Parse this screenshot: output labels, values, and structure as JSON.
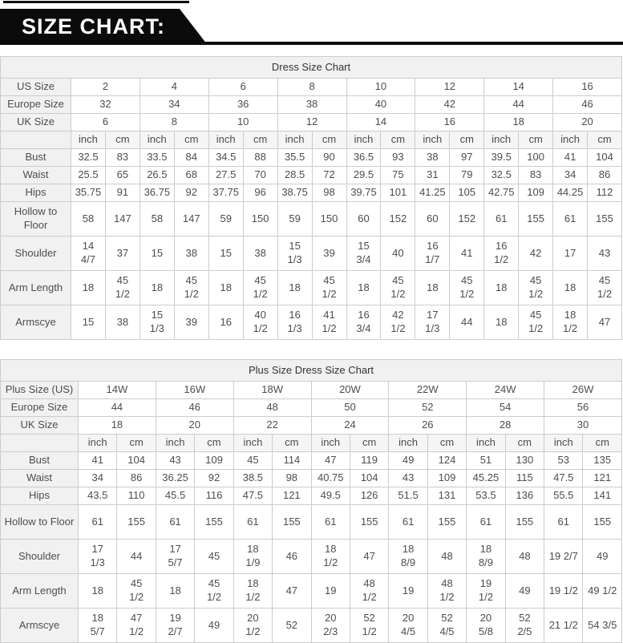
{
  "banner": {
    "title": "SIZE CHART:"
  },
  "colors": {
    "banner_bg": "#0b0b0b",
    "banner_text": "#ffffff",
    "header_bg": "#f1f1f1",
    "unit_bg": "#f5f5f5",
    "border": "#cccccc",
    "text": "#4d4d4d"
  },
  "tables": [
    {
      "title": "Dress Size Chart",
      "size_rows": [
        {
          "label": "US Size",
          "values": [
            "2",
            "4",
            "6",
            "8",
            "10",
            "12",
            "14",
            "16"
          ]
        },
        {
          "label": "Europe Size",
          "values": [
            "32",
            "34",
            "36",
            "38",
            "40",
            "42",
            "44",
            "46"
          ]
        },
        {
          "label": "UK Size",
          "values": [
            "6",
            "8",
            "10",
            "12",
            "14",
            "16",
            "18",
            "20"
          ]
        }
      ],
      "unit_headers": [
        "inch",
        "cm"
      ],
      "measure_rows": [
        {
          "label": "Bust",
          "tall": false,
          "cells": [
            [
              "32.5",
              "83"
            ],
            [
              "33.5",
              "84"
            ],
            [
              "34.5",
              "88"
            ],
            [
              "35.5",
              "90"
            ],
            [
              "36.5",
              "93"
            ],
            [
              "38",
              "97"
            ],
            [
              "39.5",
              "100"
            ],
            [
              "41",
              "104"
            ]
          ]
        },
        {
          "label": "Waist",
          "tall": false,
          "cells": [
            [
              "25.5",
              "65"
            ],
            [
              "26.5",
              "68"
            ],
            [
              "27.5",
              "70"
            ],
            [
              "28.5",
              "72"
            ],
            [
              "29.5",
              "75"
            ],
            [
              "31",
              "79"
            ],
            [
              "32.5",
              "83"
            ],
            [
              "34",
              "86"
            ]
          ]
        },
        {
          "label": "Hips",
          "tall": false,
          "cells": [
            [
              "35.75",
              "91"
            ],
            [
              "36.75",
              "92"
            ],
            [
              "37.75",
              "96"
            ],
            [
              "38.75",
              "98"
            ],
            [
              "39.75",
              "101"
            ],
            [
              "41.25",
              "105"
            ],
            [
              "42.75",
              "109"
            ],
            [
              "44.25",
              "112"
            ]
          ]
        },
        {
          "label": "Hollow to Floor",
          "tall": true,
          "cells": [
            [
              "58",
              "147"
            ],
            [
              "58",
              "147"
            ],
            [
              "59",
              "150"
            ],
            [
              "59",
              "150"
            ],
            [
              "60",
              "152"
            ],
            [
              "60",
              "152"
            ],
            [
              "61",
              "155"
            ],
            [
              "61",
              "155"
            ]
          ]
        },
        {
          "label": "Shoulder",
          "tall": true,
          "cells": [
            [
              "14\n4/7",
              "37"
            ],
            [
              "15",
              "38"
            ],
            [
              "15",
              "38"
            ],
            [
              "15\n1/3",
              "39"
            ],
            [
              "15\n3/4",
              "40"
            ],
            [
              "16\n1/7",
              "41"
            ],
            [
              "16\n1/2",
              "42"
            ],
            [
              "17",
              "43"
            ]
          ]
        },
        {
          "label": "Arm Length",
          "tall": true,
          "cells": [
            [
              "18",
              "45\n1/2"
            ],
            [
              "18",
              "45\n1/2"
            ],
            [
              "18",
              "45\n1/2"
            ],
            [
              "18",
              "45\n1/2"
            ],
            [
              "18",
              "45\n1/2"
            ],
            [
              "18",
              "45\n1/2"
            ],
            [
              "18",
              "45\n1/2"
            ],
            [
              "18",
              "45\n1/2"
            ]
          ]
        },
        {
          "label": "Armscye",
          "tall": true,
          "cells": [
            [
              "15",
              "38"
            ],
            [
              "15\n1/3",
              "39"
            ],
            [
              "16",
              "40\n1/2"
            ],
            [
              "16\n1/3",
              "41\n1/2"
            ],
            [
              "16\n3/4",
              "42\n1/2"
            ],
            [
              "17\n1/3",
              "44"
            ],
            [
              "18",
              "45\n1/2"
            ],
            [
              "18\n1/2",
              "47"
            ]
          ]
        }
      ]
    },
    {
      "title": "Plus Size Dress Size Chart",
      "size_rows": [
        {
          "label": "Plus Size (US)",
          "values": [
            "14W",
            "16W",
            "18W",
            "20W",
            "22W",
            "24W",
            "26W"
          ]
        },
        {
          "label": "Europe Size",
          "values": [
            "44",
            "46",
            "48",
            "50",
            "52",
            "54",
            "56"
          ]
        },
        {
          "label": "UK Size",
          "values": [
            "18",
            "20",
            "22",
            "24",
            "26",
            "28",
            "30"
          ]
        }
      ],
      "unit_headers": [
        "inch",
        "cm"
      ],
      "measure_rows": [
        {
          "label": "Bust",
          "tall": false,
          "cells": [
            [
              "41",
              "104"
            ],
            [
              "43",
              "109"
            ],
            [
              "45",
              "114"
            ],
            [
              "47",
              "119"
            ],
            [
              "49",
              "124"
            ],
            [
              "51",
              "130"
            ],
            [
              "53",
              "135"
            ]
          ]
        },
        {
          "label": "Waist",
          "tall": false,
          "cells": [
            [
              "34",
              "86"
            ],
            [
              "36.25",
              "92"
            ],
            [
              "38.5",
              "98"
            ],
            [
              "40.75",
              "104"
            ],
            [
              "43",
              "109"
            ],
            [
              "45.25",
              "115"
            ],
            [
              "47.5",
              "121"
            ]
          ]
        },
        {
          "label": "Hips",
          "tall": false,
          "cells": [
            [
              "43.5",
              "110"
            ],
            [
              "45.5",
              "116"
            ],
            [
              "47.5",
              "121"
            ],
            [
              "49.5",
              "126"
            ],
            [
              "51.5",
              "131"
            ],
            [
              "53.5",
              "136"
            ],
            [
              "55.5",
              "141"
            ]
          ]
        },
        {
          "label": "Hollow to Floor",
          "tall": true,
          "cells": [
            [
              "61",
              "155"
            ],
            [
              "61",
              "155"
            ],
            [
              "61",
              "155"
            ],
            [
              "61",
              "155"
            ],
            [
              "61",
              "155"
            ],
            [
              "61",
              "155"
            ],
            [
              "61",
              "155"
            ]
          ]
        },
        {
          "label": "Shoulder",
          "tall": true,
          "cells": [
            [
              "17\n1/3",
              "44"
            ],
            [
              "17\n5/7",
              "45"
            ],
            [
              "18\n1/9",
              "46"
            ],
            [
              "18\n1/2",
              "47"
            ],
            [
              "18\n8/9",
              "48"
            ],
            [
              "18\n8/9",
              "48"
            ],
            [
              "19 2/7",
              "49"
            ]
          ]
        },
        {
          "label": "Arm Length",
          "tall": true,
          "cells": [
            [
              "18",
              "45\n1/2"
            ],
            [
              "18",
              "45\n1/2"
            ],
            [
              "18\n1/2",
              "47"
            ],
            [
              "19",
              "48\n1/2"
            ],
            [
              "19",
              "48\n1/2"
            ],
            [
              "19\n1/2",
              "49"
            ],
            [
              "19 1/2",
              "49 1/2"
            ]
          ]
        },
        {
          "label": "Armscye",
          "tall": true,
          "cells": [
            [
              "18\n5/7",
              "47\n1/2"
            ],
            [
              "19\n2/7",
              "49"
            ],
            [
              "20\n1/2",
              "52"
            ],
            [
              "20\n2/3",
              "52\n1/2"
            ],
            [
              "20\n4/5",
              "52\n4/5"
            ],
            [
              "20\n5/8",
              "52\n2/5"
            ],
            [
              "21 1/2",
              "54 3/5"
            ]
          ]
        }
      ]
    }
  ]
}
